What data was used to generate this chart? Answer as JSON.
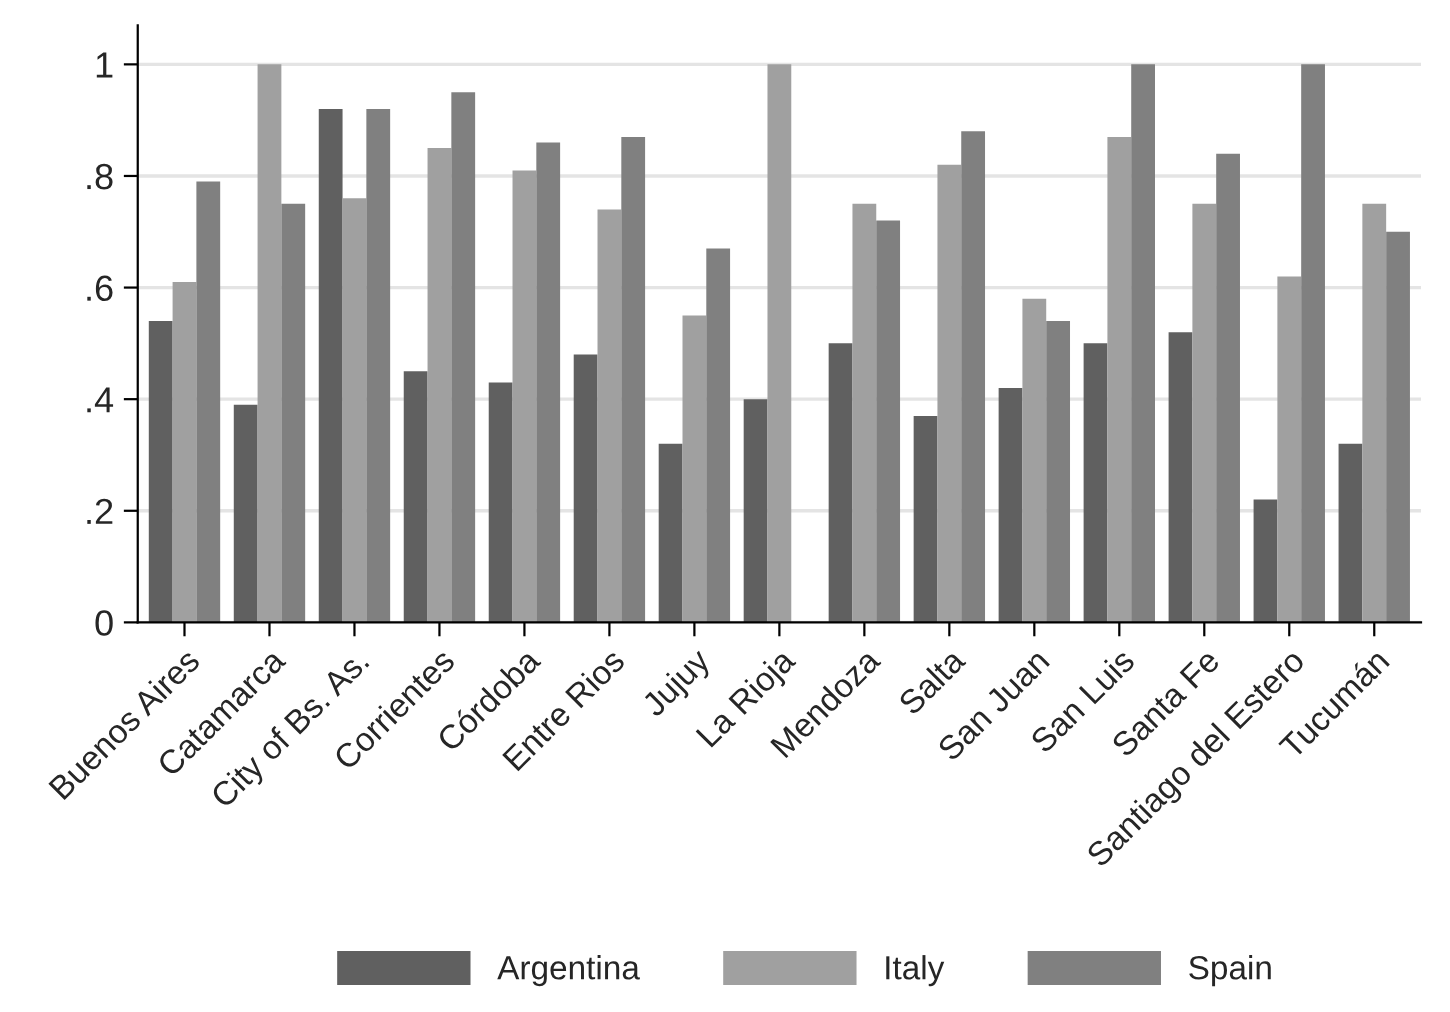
{
  "chart_data": {
    "type": "bar",
    "categories": [
      "Buenos Aires",
      "Catamarca",
      "City of Bs. As.",
      "Corrientes",
      "Córdoba",
      "Entre Rios",
      "Jujuy",
      "La Rioja",
      "Mendoza",
      "Salta",
      "San Juan",
      "San Luis",
      "Santa Fe",
      "Santiago del Estero",
      "Tucumán"
    ],
    "series": [
      {
        "name": "Argentina",
        "color": "#606060",
        "values": [
          0.54,
          0.39,
          0.92,
          0.45,
          0.43,
          0.48,
          0.32,
          0.4,
          0.5,
          0.37,
          0.42,
          0.5,
          0.52,
          0.22,
          0.32
        ]
      },
      {
        "name": "Italy",
        "color": "#a0a0a0",
        "values": [
          0.61,
          1.0,
          0.76,
          0.85,
          0.81,
          0.74,
          0.55,
          1.0,
          0.75,
          0.82,
          0.58,
          0.87,
          0.75,
          0.62,
          0.75
        ]
      },
      {
        "name": "Spain",
        "color": "#808080",
        "values": [
          0.79,
          0.75,
          0.92,
          0.95,
          0.86,
          0.87,
          0.67,
          null,
          0.72,
          0.88,
          0.54,
          1.0,
          0.84,
          1.0,
          0.7
        ]
      }
    ],
    "ylim": [
      0,
      1.07
    ],
    "yticks": [
      0,
      {
        "value": 0.2,
        "label": ".2"
      },
      {
        "value": 0.4,
        "label": ".4"
      },
      {
        "value": 0.6,
        "label": ".6"
      },
      {
        "value": 0.8,
        "label": ".8"
      },
      1
    ],
    "grid": "y",
    "legend": "bottom"
  }
}
